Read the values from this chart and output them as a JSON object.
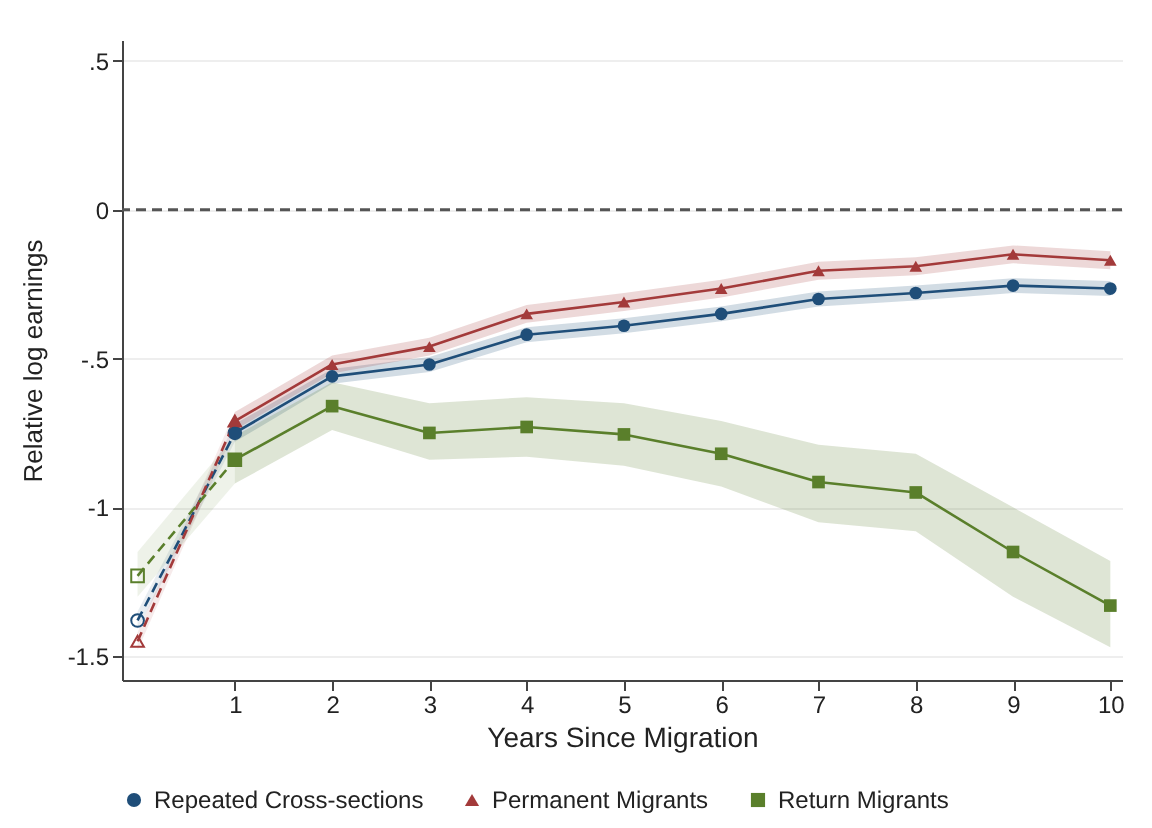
{
  "chart_data": {
    "type": "line",
    "xlabel": "Years Since Migration",
    "ylabel": "Relative log earnings",
    "xlim": [
      -0.16,
      10.12
    ],
    "xticks": [
      1,
      2,
      3,
      4,
      5,
      6,
      7,
      8,
      9,
      10
    ],
    "ylim": [
      -1.58,
      0.57
    ],
    "yticks": [
      {
        "value": 0.5,
        "label": ".5"
      },
      0,
      {
        "value": -0.5,
        "label": "-.5"
      },
      -1,
      -1.5
    ],
    "grid": "y",
    "legend": "bottom",
    "ref_lines": [
      {
        "axis": "y",
        "value": 0,
        "color": "#555555",
        "line_style": "dashed"
      }
    ],
    "series": [
      {
        "x": [
          0,
          1
        ],
        "color": "#1f4e79",
        "values": [
          -1.38,
          -0.75
        ],
        "lower": [
          -1.41,
          -0.78
        ],
        "upper": [
          -1.35,
          -0.72
        ],
        "line_style": "dashed",
        "marker": "circle"
      },
      {
        "x": [
          0,
          1
        ],
        "color": "#a33a3a",
        "values": [
          -1.45,
          -0.71
        ],
        "lower": [
          -1.48,
          -0.74
        ],
        "upper": [
          -1.42,
          -0.68
        ],
        "line_style": "dashed",
        "marker": "triangle"
      },
      {
        "x": [
          0,
          1
        ],
        "color": "#5a7f2b",
        "values": [
          -1.23,
          -0.84
        ],
        "lower": [
          -1.3,
          -0.92
        ],
        "upper": [
          -1.15,
          -0.76
        ],
        "line_style": "dashed",
        "marker": "square"
      },
      {
        "name": "Repeated Cross-sections",
        "x": [
          1,
          2,
          3,
          4,
          5,
          6,
          7,
          8,
          9,
          10
        ],
        "color": "#1f4e79",
        "values": [
          -0.75,
          -0.56,
          -0.52,
          -0.42,
          -0.39,
          -0.35,
          -0.3,
          -0.28,
          -0.255,
          -0.265
        ],
        "lower": [
          -0.78,
          -0.585,
          -0.545,
          -0.445,
          -0.415,
          -0.375,
          -0.325,
          -0.305,
          -0.28,
          -0.29
        ],
        "upper": [
          -0.72,
          -0.535,
          -0.495,
          -0.395,
          -0.365,
          -0.325,
          -0.275,
          -0.255,
          -0.23,
          -0.24
        ],
        "line_style": "solid",
        "marker": "circle"
      },
      {
        "name": "Permanent Migrants",
        "x": [
          1,
          2,
          3,
          4,
          5,
          6,
          7,
          8,
          9,
          10
        ],
        "color": "#a33a3a",
        "values": [
          -0.71,
          -0.52,
          -0.46,
          -0.35,
          -0.31,
          -0.265,
          -0.205,
          -0.19,
          -0.15,
          -0.17
        ],
        "lower": [
          -0.74,
          -0.55,
          -0.49,
          -0.38,
          -0.34,
          -0.295,
          -0.235,
          -0.22,
          -0.18,
          -0.2
        ],
        "upper": [
          -0.68,
          -0.49,
          -0.43,
          -0.32,
          -0.28,
          -0.235,
          -0.175,
          -0.16,
          -0.12,
          -0.14
        ],
        "line_style": "solid",
        "marker": "triangle"
      },
      {
        "name": "Return Migrants",
        "x": [
          1,
          2,
          3,
          4,
          5,
          6,
          7,
          8,
          9,
          10
        ],
        "color": "#5a7f2b",
        "values": [
          -0.84,
          -0.66,
          -0.75,
          -0.73,
          -0.755,
          -0.82,
          -0.915,
          -0.95,
          -1.15,
          -1.33
        ],
        "lower": [
          -0.92,
          -0.74,
          -0.84,
          -0.83,
          -0.86,
          -0.93,
          -1.05,
          -1.08,
          -1.3,
          -1.47
        ],
        "upper": [
          -0.76,
          -0.58,
          -0.65,
          -0.63,
          -0.65,
          -0.71,
          -0.79,
          -0.82,
          -1.0,
          -1.18
        ],
        "line_style": "solid",
        "marker": "square"
      }
    ]
  }
}
